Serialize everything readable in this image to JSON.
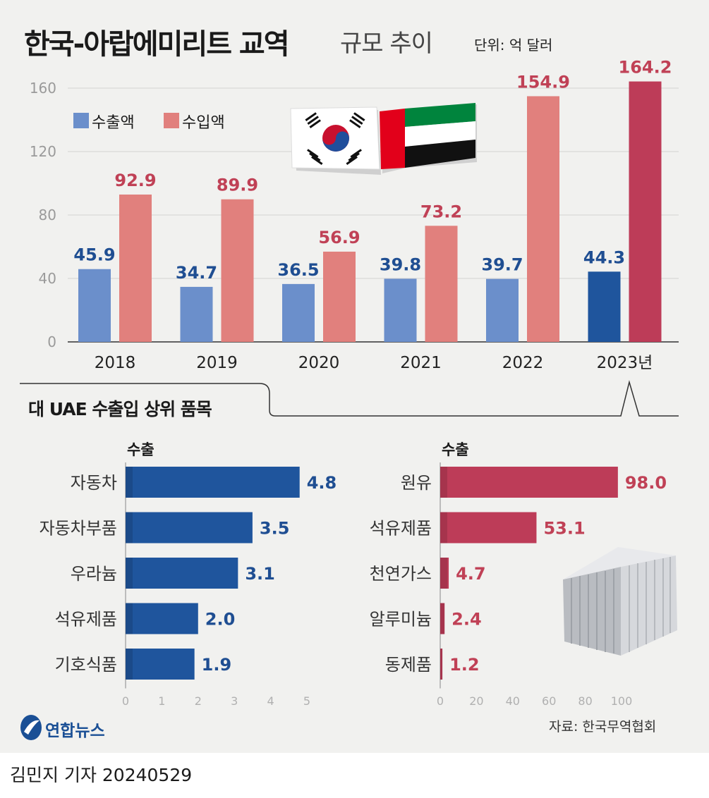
{
  "header": {
    "title_bold": "한국-아랍에미리트 교역",
    "title_light": "규모 추이",
    "unit": "단위: 억 달러"
  },
  "legend": {
    "export": "수출액",
    "import": "수입액"
  },
  "colors": {
    "export": "#6b8fcb",
    "import": "#e1807d",
    "export_highlight": "#1f559d",
    "import_highlight": "#bd3c58",
    "axis_text": "#9a9a9a",
    "value_export": "#1f4e92",
    "value_import": "#c04156"
  },
  "chart_data": [
    {
      "type": "bar",
      "categories": [
        "2018",
        "2019",
        "2020",
        "2021",
        "2022",
        "2023년"
      ],
      "series": [
        {
          "name": "수출액",
          "values": [
            45.9,
            34.7,
            36.5,
            39.8,
            39.7,
            44.3
          ]
        },
        {
          "name": "수입액",
          "values": [
            92.9,
            89.9,
            56.9,
            73.2,
            154.9,
            164.2
          ]
        }
      ],
      "yticks": [
        0,
        40,
        80,
        120,
        160
      ],
      "ylim": [
        0,
        170
      ],
      "grid": true,
      "legend_position": "top-left"
    },
    {
      "type": "bar",
      "orientation": "horizontal",
      "title": "수출",
      "categories": [
        "자동차",
        "자동차부품",
        "우라늄",
        "석유제품",
        "기호식품"
      ],
      "values": [
        4.8,
        3.5,
        3.1,
        2.0,
        1.9
      ],
      "value_labels": [
        "4.8",
        "3.5",
        "3.1",
        "2.0",
        "1.9"
      ],
      "xticks": [
        0,
        1,
        2,
        3,
        4,
        5
      ],
      "xlim": [
        0,
        5
      ]
    },
    {
      "type": "bar",
      "orientation": "horizontal",
      "title": "수출",
      "categories": [
        "원유",
        "석유제품",
        "천연가스",
        "알루미늄",
        "동제품"
      ],
      "values": [
        98.0,
        53.1,
        4.7,
        2.4,
        1.2
      ],
      "value_labels": [
        "98.0",
        "53.1",
        "4.7",
        "2.4",
        "1.2"
      ],
      "xticks": [
        0,
        20,
        40,
        60,
        80,
        100
      ],
      "xlim": [
        0,
        100
      ]
    }
  ],
  "section2": {
    "title": "대 UAE 수출입 상위 품목"
  },
  "footer": {
    "source": "자료: 한국무역협회",
    "logo": "연합뉴스",
    "credit": "김민지 기자  20240529"
  }
}
